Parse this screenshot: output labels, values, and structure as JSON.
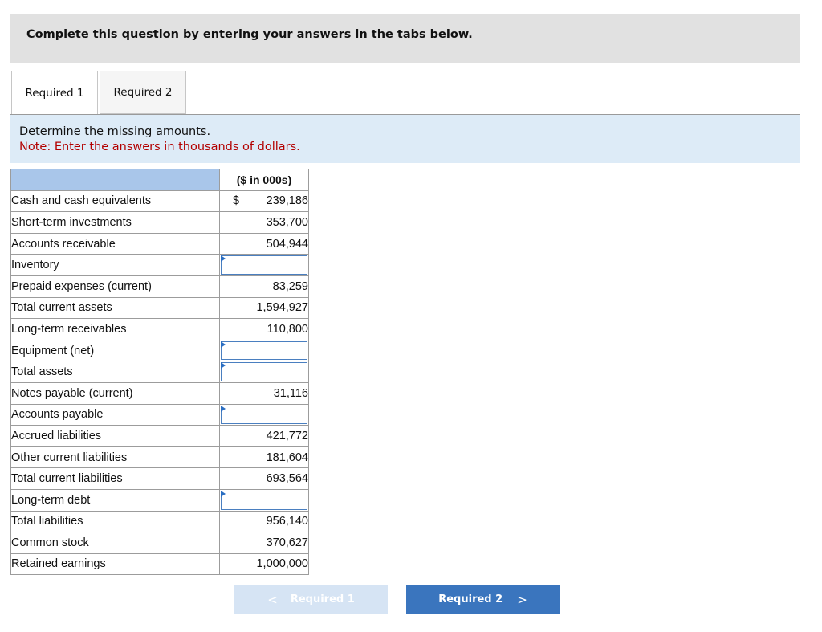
{
  "instruction": "Complete this question by entering your answers in the tabs below.",
  "tabs": [
    {
      "label": "Required 1",
      "active": true
    },
    {
      "label": "Required 2",
      "active": false
    }
  ],
  "prompt": {
    "main": "Determine the missing amounts.",
    "note": "Note: Enter the answers in thousands of dollars."
  },
  "table": {
    "column_header": "($ in 000s)",
    "currency_symbol": "$",
    "rows": [
      {
        "label": "Cash and cash equivalents",
        "value": "239,186"
      },
      {
        "label": "Short-term investments",
        "value": "353,700"
      },
      {
        "label": "Accounts receivable",
        "value": "504,944"
      },
      {
        "label": "Inventory",
        "value": ""
      },
      {
        "label": "Prepaid expenses (current)",
        "value": "83,259"
      },
      {
        "label": "Total current assets",
        "value": "1,594,927"
      },
      {
        "label": "Long-term receivables",
        "value": "110,800"
      },
      {
        "label": "Equipment (net)",
        "value": ""
      },
      {
        "label": "Total assets",
        "value": ""
      },
      {
        "label": "Notes payable (current)",
        "value": "31,116"
      },
      {
        "label": "Accounts payable",
        "value": ""
      },
      {
        "label": "Accrued liabilities",
        "value": "421,772"
      },
      {
        "label": "Other current liabilities",
        "value": "181,604"
      },
      {
        "label": "Total current liabilities",
        "value": "693,564"
      },
      {
        "label": "Long-term debt",
        "value": ""
      },
      {
        "label": "Total liabilities",
        "value": "956,140"
      },
      {
        "label": "Common stock",
        "value": "370,627"
      },
      {
        "label": "Retained earnings",
        "value": "1,000,000"
      }
    ]
  },
  "nav": {
    "prev_label": "Required 1",
    "next_label": "Required 2",
    "prev_icon": "chevron-left-icon",
    "next_icon": "chevron-right-icon"
  },
  "colors": {
    "header_blue": "#a9c6ea",
    "prompt_bg": "#ddebf7",
    "note_red": "#b30000",
    "next_button": "#3a75be",
    "prev_button_disabled": "#d6e4f4"
  }
}
